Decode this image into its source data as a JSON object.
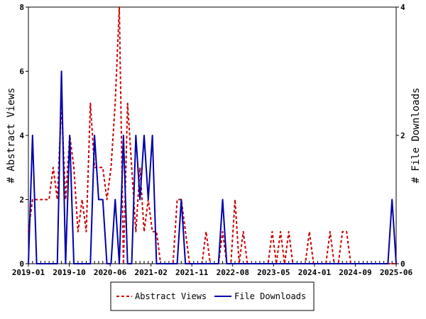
{
  "chart_data": {
    "type": "line",
    "x_ticks": [
      "2019-01",
      "2019-10",
      "2020-06",
      "2021-02",
      "2021-11",
      "2022-08",
      "2023-05",
      "2024-01",
      "2024-09",
      "2025-06"
    ],
    "ylabel_left": "# Abstract Views",
    "ylabel_right": "# File Downloads",
    "ylim_left": [
      0,
      8
    ],
    "ylim_right": [
      0,
      4
    ],
    "yticks_left": [
      0,
      2,
      4,
      6,
      8
    ],
    "yticks_right": [
      0,
      2,
      4
    ],
    "grid": false,
    "legend_position": "bottom-center",
    "series": [
      {
        "name": "Abstract Views",
        "axis": "left",
        "color": "#cc0000",
        "style": "dashed",
        "values": [
          1,
          2,
          2,
          2,
          2,
          2,
          3,
          2,
          5,
          2,
          4,
          3,
          1,
          2,
          1,
          5,
          3,
          3,
          3,
          2,
          3,
          5,
          8,
          0,
          5,
          3,
          1,
          3,
          1,
          2,
          1,
          1,
          0,
          0,
          0,
          0,
          2,
          2,
          1,
          0,
          0,
          0,
          0,
          1,
          0,
          0,
          0,
          1,
          0,
          0,
          2,
          0,
          1,
          0,
          0,
          0,
          0,
          0,
          0,
          1,
          0,
          1,
          0,
          1,
          0,
          0,
          0,
          0,
          1,
          0,
          0,
          0,
          0,
          1,
          0,
          0,
          1,
          1,
          0,
          0,
          0,
          0,
          0,
          0,
          0,
          0,
          0,
          0,
          0,
          0
        ]
      },
      {
        "name": "File Downloads",
        "axis": "right",
        "color": "#0000aa",
        "style": "solid",
        "values": [
          0,
          2,
          0,
          0,
          0,
          0,
          0,
          0,
          3,
          0,
          2,
          0,
          0,
          0,
          0,
          0,
          2,
          1,
          1,
          0,
          0,
          1,
          0,
          2,
          0,
          0,
          2,
          1,
          2,
          1,
          2,
          0,
          0,
          0,
          0,
          0,
          0,
          1,
          0,
          0,
          0,
          0,
          0,
          0,
          0,
          0,
          0,
          1,
          0,
          0,
          0,
          0,
          0,
          0,
          0,
          0,
          0,
          0,
          0,
          0,
          0,
          0,
          0,
          0,
          0,
          0,
          0,
          0,
          0,
          0,
          0,
          0,
          0,
          0,
          0,
          0,
          0,
          0,
          0,
          0,
          0,
          0,
          0,
          0,
          0,
          0,
          0,
          0,
          1,
          0
        ]
      }
    ]
  }
}
